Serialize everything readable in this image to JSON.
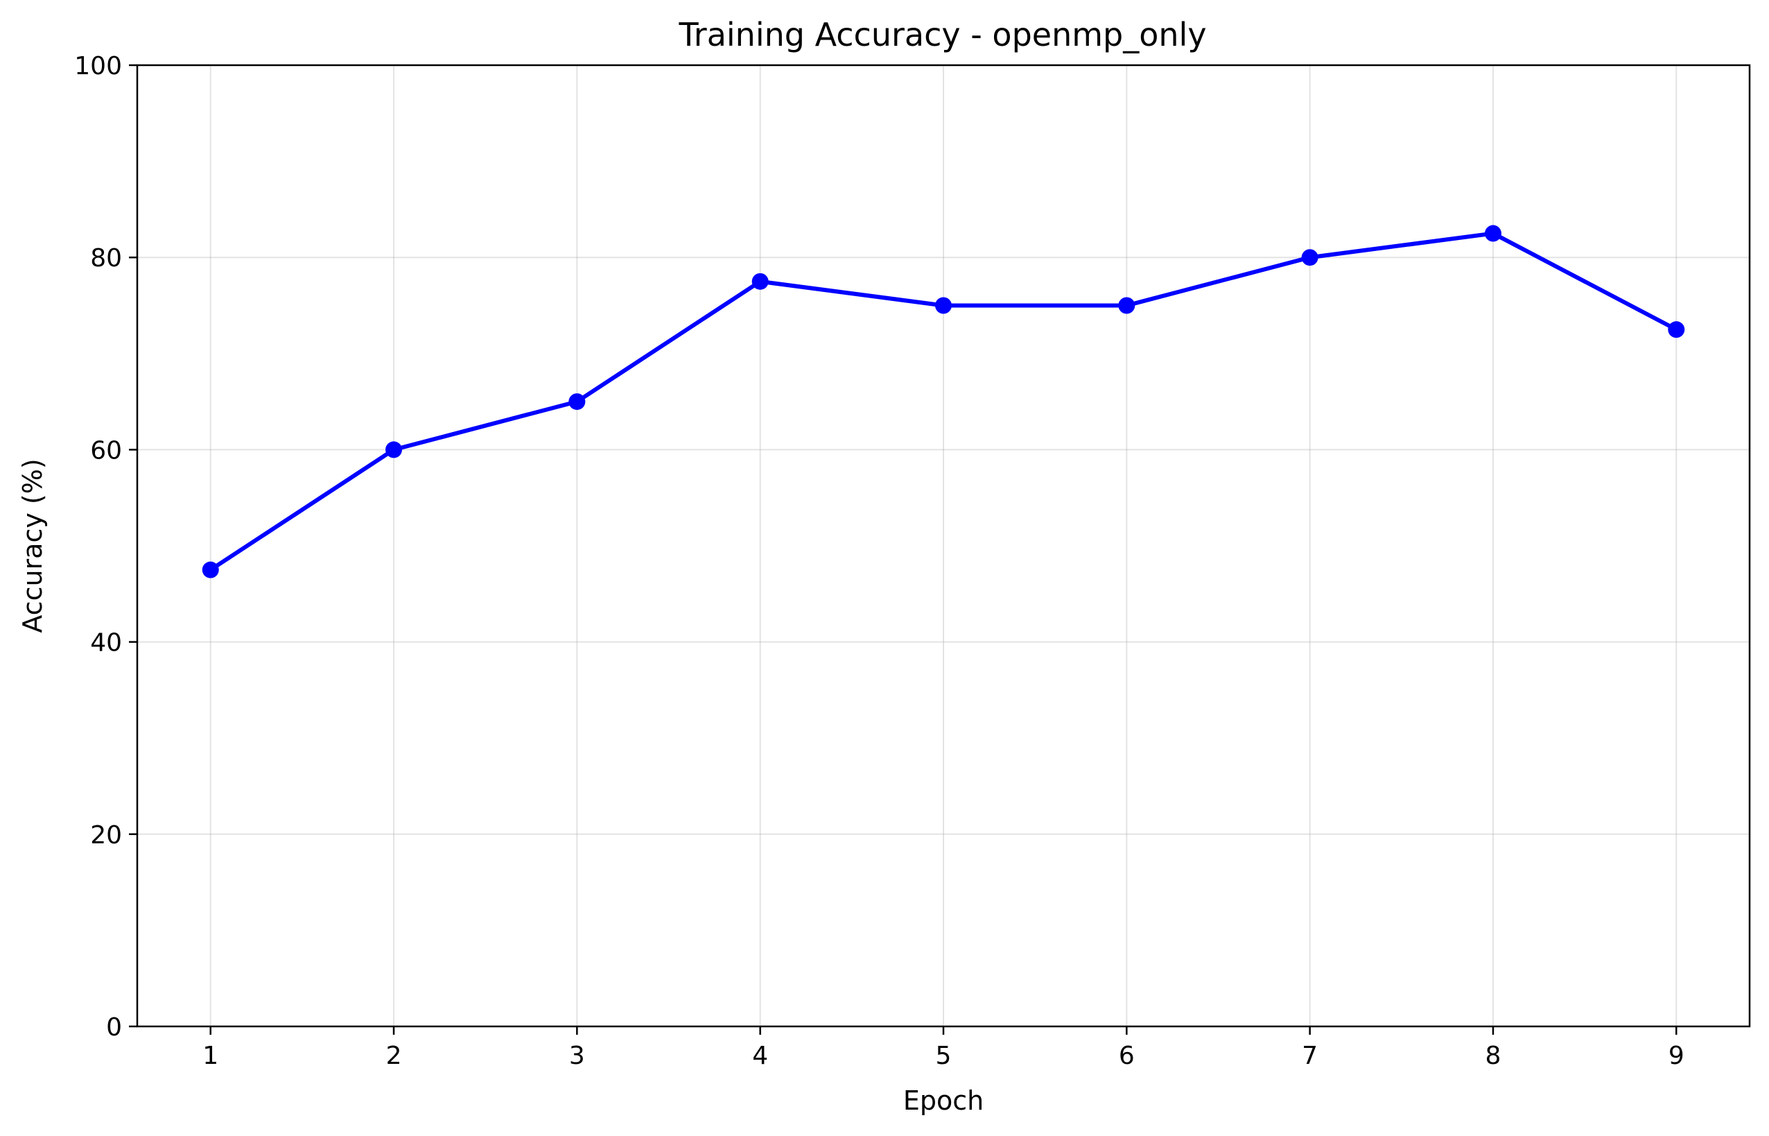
{
  "chart_data": {
    "type": "line",
    "title": "Training Accuracy - openmp_only",
    "xlabel": "Epoch",
    "ylabel": "Accuracy (%)",
    "x": [
      1,
      2,
      3,
      4,
      5,
      6,
      7,
      8,
      9
    ],
    "xlim": [
      0.6,
      9.4
    ],
    "ylim": [
      0,
      100
    ],
    "xticks": [
      1,
      2,
      3,
      4,
      5,
      6,
      7,
      8,
      9
    ],
    "yticks": [
      0,
      20,
      40,
      60,
      80,
      100
    ],
    "grid": true,
    "series": [
      {
        "color": "#0000ff",
        "marker": "circle",
        "values": [
          47.5,
          60.0,
          65.0,
          77.5,
          75.0,
          75.0,
          80.0,
          82.5,
          72.5
        ]
      }
    ]
  }
}
